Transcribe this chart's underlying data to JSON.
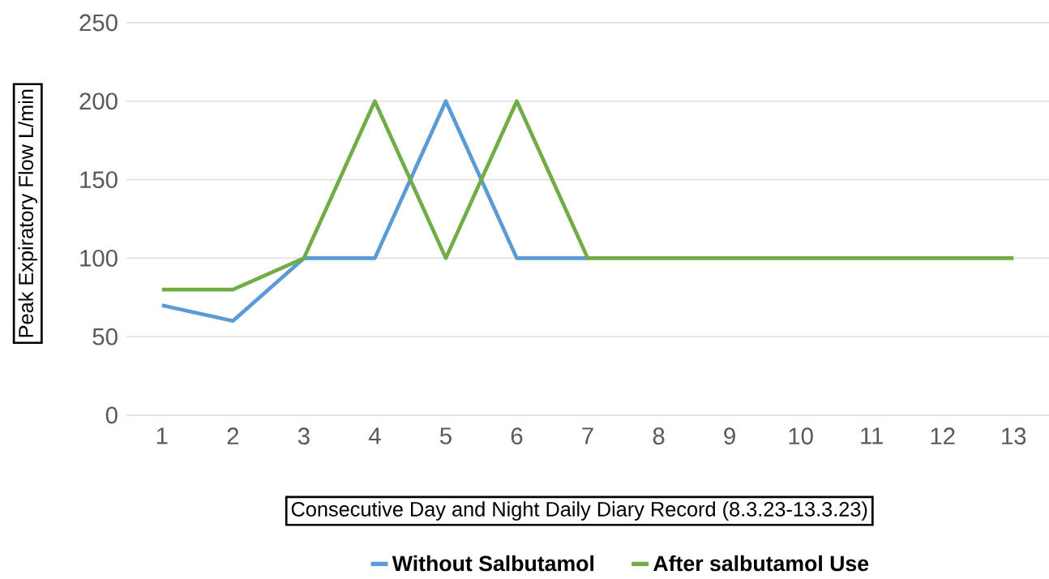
{
  "chart_data": {
    "type": "line",
    "xlabel": "Consecutive Day and Night Daily Diary Record (8.3.23-13.3.23)",
    "ylabel": "Peak Expiratory Flow L/min",
    "categories": [
      "1",
      "2",
      "3",
      "4",
      "5",
      "6",
      "7",
      "8",
      "9",
      "10",
      "11",
      "12",
      "13"
    ],
    "series": [
      {
        "name": "Without Salbutamol",
        "color": "#5b9bd5",
        "values": [
          70,
          60,
          100,
          100,
          200,
          100,
          100,
          null,
          null,
          null,
          null,
          null,
          null
        ]
      },
      {
        "name": "After salbutamol Use",
        "color": "#70ad47",
        "values": [
          80,
          80,
          100,
          200,
          100,
          200,
          100,
          100,
          100,
          100,
          100,
          100,
          100
        ]
      }
    ],
    "ylim": [
      0,
      250
    ],
    "yticks": [
      0,
      50,
      100,
      150,
      200,
      250
    ],
    "grid": "y",
    "legend": "bottom",
    "marker": "none",
    "line_style": "solid"
  }
}
